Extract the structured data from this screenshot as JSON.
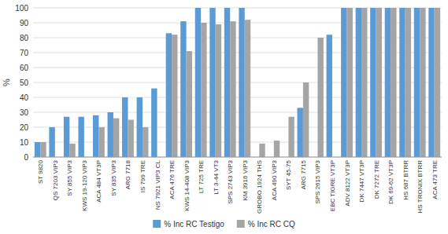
{
  "chart_data": {
    "type": "bar",
    "y_label": "%",
    "categories": [
      "ST 9820",
      "QS 7203 VIP3",
      "SY 855 VIP3",
      "KWS 19-120 VIP3",
      "ACA 484 VT3P",
      "SY 835 VIP3",
      "ARG 7718",
      "IS 799 TRE",
      "NS 7921 VIP3 CL",
      "ACA 476 TRE",
      "KWS 14-408 VIP3",
      "LT 725 TRE",
      "LT 3-44 VT3",
      "SPS 2743 VIP3",
      "KM 3916 VIP3",
      "GROBO 1924 THS",
      "ACA 490 VIP3",
      "SYT 45-75",
      "ARG 7715",
      "SPS 2615 VIP3",
      "EBC TIGRE VT3P",
      "ADV 8122 VT3P",
      "DK 7447 VT3P",
      "DK 7272 TRE",
      "DK 69-62 VT3P",
      "HS 687 BTRR",
      "HS TRONIX BTRR",
      "ACA 473 TRE"
    ],
    "series": [
      {
        "name": "% Inc RC Testigo",
        "color": "#5B9BD5",
        "values": [
          10,
          20,
          27,
          27,
          28,
          30,
          40,
          40,
          46,
          83,
          91,
          100,
          100,
          100,
          100,
          0,
          0,
          0,
          33,
          0,
          82,
          100,
          100,
          100,
          100,
          100,
          100,
          100
        ]
      },
      {
        "name": "% Inc RC CQ",
        "color": "#A5A5A5",
        "values": [
          10,
          0,
          9,
          0,
          20,
          26,
          25,
          20,
          0,
          82,
          71,
          90,
          89,
          91,
          92,
          9,
          11,
          27,
          50,
          80,
          0,
          100,
          100,
          100,
          100,
          100,
          100,
          100
        ]
      }
    ],
    "ylim": [
      0,
      100
    ],
    "yticks": [
      0,
      10,
      20,
      30,
      40,
      50,
      60,
      70,
      80,
      90,
      100
    ],
    "grid": true,
    "legend": "bottom"
  }
}
